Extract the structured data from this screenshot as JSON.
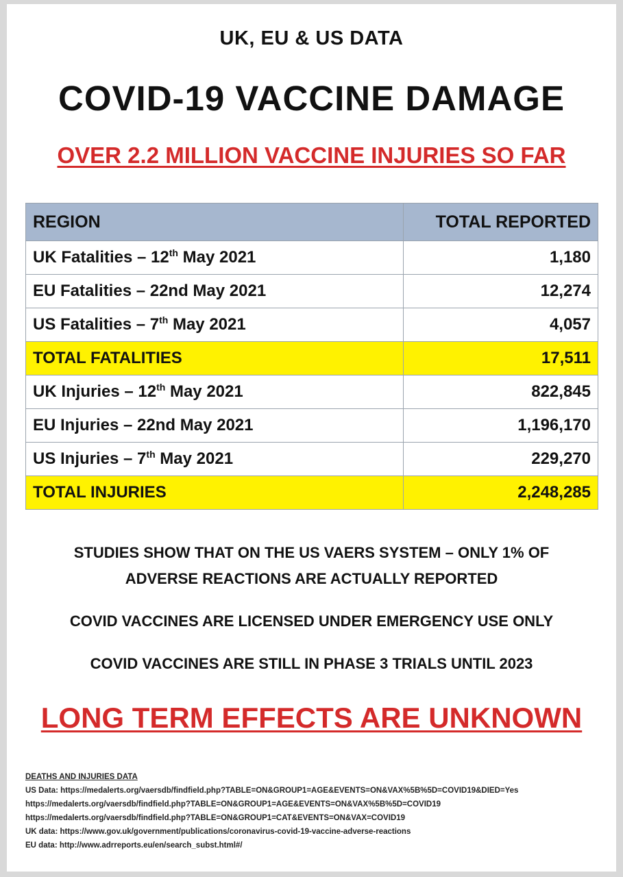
{
  "header": {
    "subtitle": "UK, EU & US DATA",
    "title": "COVID-19 VACCINE DAMAGE",
    "claim": "OVER 2.2 MILLION VACCINE INJURIES SO FAR"
  },
  "table": {
    "headers": {
      "region": "REGION",
      "total": "TOTAL REPORTED"
    },
    "rows": [
      {
        "region": "UK Fatalities – 12",
        "sup": "th",
        "suffix": " May 2021",
        "total": "1,180"
      },
      {
        "region": "EU Fatalities – 22nd May 2021",
        "sup": "",
        "suffix": "",
        "total": "12,274"
      },
      {
        "region": "US Fatalities – 7",
        "sup": "th",
        "suffix": " May 2021",
        "total": "4,057"
      },
      {
        "region": "TOTAL FATALITIES",
        "sup": "",
        "suffix": "",
        "total": "17,511"
      },
      {
        "region": "UK Injuries – 12",
        "sup": "th",
        "suffix": " May 2021",
        "total": "822,845"
      },
      {
        "region": "EU Injuries – 22nd May 2021",
        "sup": "",
        "suffix": "",
        "total": "1,196,170"
      },
      {
        "region": "US Injuries – 7",
        "sup": "th",
        "suffix": " May 2021",
        "total": "229,270"
      },
      {
        "region": "TOTAL INJURIES",
        "sup": "",
        "suffix": "",
        "total": "2,248,285"
      }
    ],
    "highlight_color": "#fff200",
    "header_color": "#a6b7cf"
  },
  "notes": {
    "vaers_line1": "STUDIES SHOW THAT ON THE US VAERS SYSTEM – ONLY 1% OF",
    "vaers_line2": "ADVERSE REACTIONS ARE ACTUALLY REPORTED",
    "emergency": "COVID VACCINES ARE LICENSED UNDER EMERGENCY USE ONLY",
    "trials": "COVID VACCINES ARE STILL IN PHASE 3 TRIALS UNTIL 2023"
  },
  "warning": "LONG TERM EFFECTS ARE UNKNOWN",
  "accent_color": "#d42a2a",
  "sources": {
    "heading": "DEATHS AND INJURIES DATA",
    "lines": [
      "US Data: https://medalerts.org/vaersdb/findfield.php?TABLE=ON&GROUP1=AGE&EVENTS=ON&VAX%5B%5D=COVID19&DIED=Yes",
      "https://medalerts.org/vaersdb/findfield.php?TABLE=ON&GROUP1=AGE&EVENTS=ON&VAX%5B%5D=COVID19",
      "https://medalerts.org/vaersdb/findfield.php?TABLE=ON&GROUP1=CAT&EVENTS=ON&VAX=COVID19",
      "UK data:  https://www.gov.uk/government/publications/coronavirus-covid-19-vaccine-adverse-reactions",
      "EU data:  http://www.adrreports.eu/en/search_subst.html#/"
    ]
  }
}
